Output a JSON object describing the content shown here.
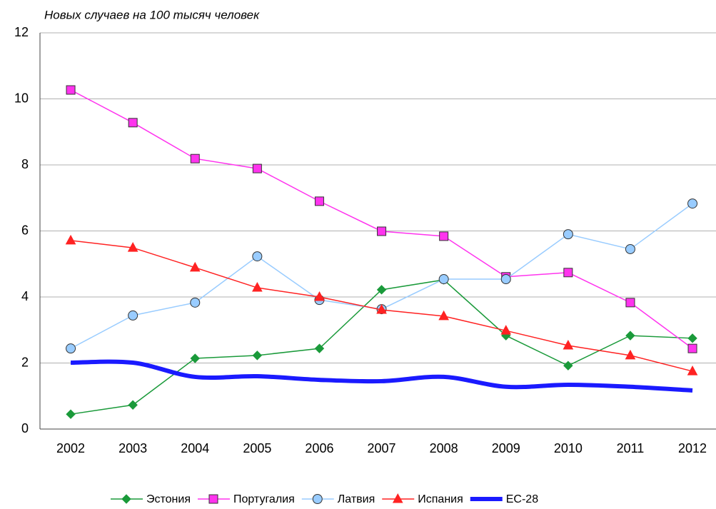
{
  "chart_data": {
    "type": "line",
    "title": "Новых случаев на 100 тысяч человек",
    "categories": [
      "2002",
      "2003",
      "2004",
      "2005",
      "2006",
      "2007",
      "2008",
      "2009",
      "2010",
      "2011",
      "2012"
    ],
    "ylim": [
      0,
      12
    ],
    "yticks": [
      0,
      2,
      4,
      6,
      8,
      10,
      12
    ],
    "grid": true,
    "legend": "bottom",
    "series": [
      {
        "name": "Эстония",
        "color": "#1a9a3a",
        "marker": "diamond",
        "values": [
          0.45,
          0.73,
          2.14,
          2.23,
          2.44,
          4.22,
          4.52,
          2.83,
          1.92,
          2.83,
          2.75
        ]
      },
      {
        "name": "Португалия",
        "color": "#ff33ee",
        "marker": "square",
        "values": [
          10.27,
          9.28,
          8.19,
          7.89,
          6.9,
          5.99,
          5.84,
          4.61,
          4.74,
          3.83,
          2.44
        ]
      },
      {
        "name": "Латвия",
        "color": "#99ccff",
        "marker": "circle",
        "values": [
          2.44,
          3.44,
          3.83,
          5.23,
          3.91,
          3.63,
          4.54,
          4.54,
          5.9,
          5.45,
          6.83
        ]
      },
      {
        "name": "Испания",
        "color": "#ff2222",
        "marker": "triangle",
        "values": [
          5.71,
          5.49,
          4.89,
          4.28,
          4.0,
          3.61,
          3.42,
          2.98,
          2.53,
          2.23,
          1.75
        ]
      },
      {
        "name": "ЕС-28",
        "color": "#1a1aff",
        "marker": "none",
        "smooth": true,
        "values": [
          2.01,
          2.01,
          1.58,
          1.6,
          1.49,
          1.45,
          1.58,
          1.28,
          1.34,
          1.28,
          1.17
        ]
      }
    ]
  }
}
